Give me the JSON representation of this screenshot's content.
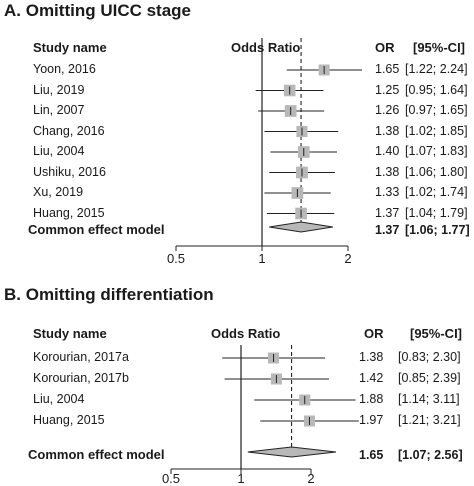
{
  "chart_data": [
    {
      "type": "forest",
      "title": "A. Omitting UICC stage",
      "headers": {
        "study": "Study name",
        "plot": "Odds Ratio",
        "or": "OR",
        "ci": "[95%-CI]"
      },
      "x_scale": "log",
      "x_ticks": [
        0.5,
        1,
        2
      ],
      "x_tick_labels": [
        "0.5",
        "1",
        "2"
      ],
      "reference_line": 1,
      "studies": [
        {
          "name": "Yoon, 2016",
          "or": 1.65,
          "lower": 1.22,
          "upper": 2.24,
          "or_text": "1.65",
          "ci_text": "[1.22; 2.24]"
        },
        {
          "name": "Liu, 2019",
          "or": 1.25,
          "lower": 0.95,
          "upper": 1.64,
          "or_text": "1.25",
          "ci_text": "[0.95; 1.64]"
        },
        {
          "name": "Lin, 2007",
          "or": 1.26,
          "lower": 0.97,
          "upper": 1.65,
          "or_text": "1.26",
          "ci_text": "[0.97; 1.65]"
        },
        {
          "name": "Chang, 2016",
          "or": 1.38,
          "lower": 1.02,
          "upper": 1.85,
          "or_text": "1.38",
          "ci_text": "[1.02; 1.85]"
        },
        {
          "name": "Liu, 2004",
          "or": 1.4,
          "lower": 1.07,
          "upper": 1.83,
          "or_text": "1.40",
          "ci_text": "[1.07; 1.83]"
        },
        {
          "name": "Ushiku, 2016",
          "or": 1.38,
          "lower": 1.06,
          "upper": 1.8,
          "or_text": "1.38",
          "ci_text": "[1.06; 1.80]"
        },
        {
          "name": "Xu, 2019",
          "or": 1.33,
          "lower": 1.02,
          "upper": 1.74,
          "or_text": "1.33",
          "ci_text": "[1.02; 1.74]"
        },
        {
          "name": "Huang, 2015",
          "or": 1.37,
          "lower": 1.04,
          "upper": 1.79,
          "or_text": "1.37",
          "ci_text": "[1.04; 1.79]"
        }
      ],
      "summary": {
        "name": "Common effect model",
        "or": 1.37,
        "lower": 1.06,
        "upper": 1.77,
        "or_text": "1.37",
        "ci_text": "[1.06; 1.77]"
      }
    },
    {
      "type": "forest",
      "title": "B. Omitting differentiation",
      "headers": {
        "study": "Study name",
        "plot": "Odds Ratio",
        "or": "OR",
        "ci": "[95%-CI]"
      },
      "x_scale": "log",
      "x_ticks": [
        0.5,
        1,
        2
      ],
      "x_tick_labels": [
        "0.5",
        "1",
        "2"
      ],
      "reference_line": 1,
      "studies": [
        {
          "name": "Korourian, 2017a",
          "or": 1.38,
          "lower": 0.83,
          "upper": 2.3,
          "or_text": "1.38",
          "ci_text": "[0.83; 2.30]"
        },
        {
          "name": "Korourian, 2017b",
          "or": 1.42,
          "lower": 0.85,
          "upper": 2.39,
          "or_text": "1.42",
          "ci_text": "[0.85; 2.39]"
        },
        {
          "name": "Liu, 2004",
          "or": 1.88,
          "lower": 1.14,
          "upper": 3.11,
          "or_text": "1.88",
          "ci_text": "[1.14; 3.11]"
        },
        {
          "name": "Huang, 2015",
          "or": 1.97,
          "lower": 1.21,
          "upper": 3.21,
          "or_text": "1.97",
          "ci_text": "[1.21; 3.21]"
        }
      ],
      "summary": {
        "name": "Common effect model",
        "or": 1.65,
        "lower": 1.07,
        "upper": 2.56,
        "or_text": "1.65",
        "ci_text": "[1.07; 2.56]"
      }
    }
  ]
}
